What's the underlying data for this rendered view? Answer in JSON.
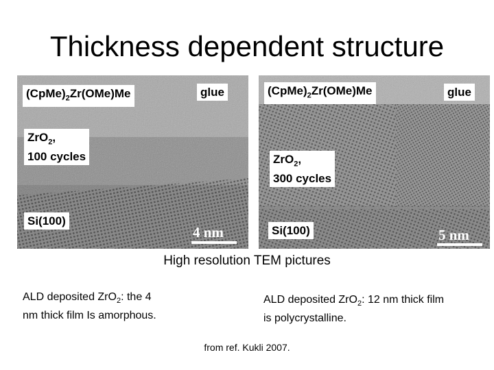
{
  "title": "Thickness dependent structure",
  "images": {
    "left": {
      "precursor": {
        "pre": "(CpMe)",
        "sub": "2",
        "post": "Zr(OMe)Me"
      },
      "glue": "glue",
      "film": {
        "pre": "ZrO",
        "sub": "2",
        "post": ",",
        "line2": "100 cycles"
      },
      "substrate": "Si(100)",
      "scale": "4 nm"
    },
    "right": {
      "precursor": {
        "pre": "(CpMe)",
        "sub": "2",
        "post": "Zr(OMe)Me"
      },
      "glue": "glue",
      "film": {
        "pre": "ZrO",
        "sub": "2",
        "post": ",",
        "line2": "300 cycles"
      },
      "substrate": "Si(100)",
      "scale": "5 nm"
    }
  },
  "caption": "High resolution TEM pictures",
  "notes": {
    "left": {
      "pre": "ALD deposited ZrO",
      "sub": "2",
      "post": ": the 4",
      "line2": "nm thick film Is amorphous."
    },
    "right": {
      "pre": "ALD deposited ZrO",
      "sub": "2",
      "post": ": 12 nm thick film",
      "line2": "is polycrystalline."
    }
  },
  "reference": "from ref. Kukli 2007."
}
